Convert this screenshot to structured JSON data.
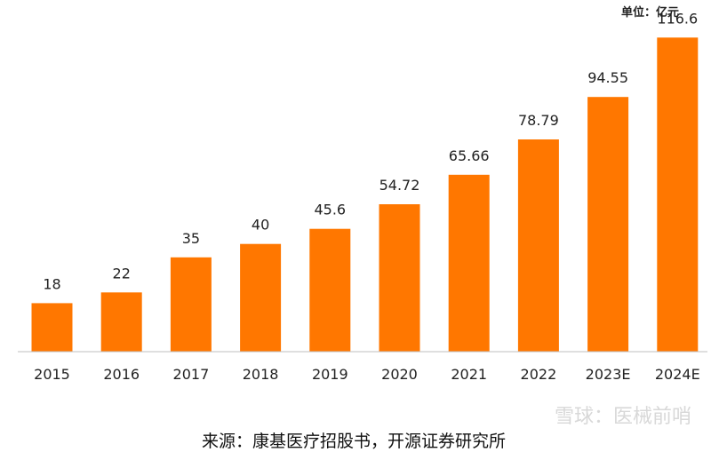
{
  "chart_data": {
    "type": "bar",
    "unit_label": "单位：亿元",
    "categories": [
      "2015",
      "2016",
      "2017",
      "2018",
      "2019",
      "2020",
      "2021",
      "2022",
      "2023E",
      "2024E"
    ],
    "values": [
      18,
      22,
      35,
      40,
      45.6,
      54.72,
      65.66,
      78.79,
      94.55,
      116.6
    ],
    "value_labels": [
      "18",
      "22",
      "35",
      "40",
      "45.6",
      "54.72",
      "65.66",
      "78.79",
      "94.55",
      "116.6"
    ],
    "ylim": [
      0,
      120
    ],
    "bar_color": "#ff7700",
    "grid": false,
    "legend": "none",
    "source": "来源：康基医疗招股书，开源证券研究所",
    "watermark": "雪球：医械前哨"
  }
}
